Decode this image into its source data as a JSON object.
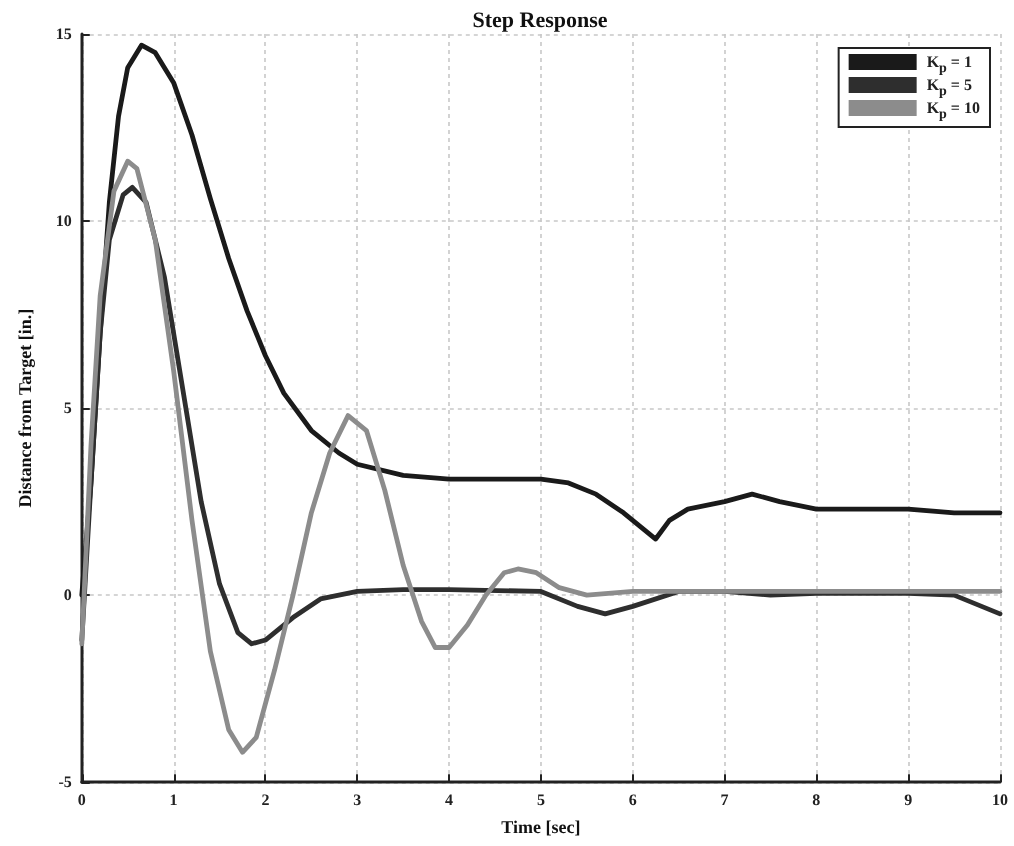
{
  "chart_data": {
    "type": "line",
    "title": "Step Response",
    "xlabel": "Time [sec]",
    "ylabel": "Distance from Target [in.]",
    "xlim": [
      0,
      10
    ],
    "xticks": [
      0,
      1,
      2,
      3,
      4,
      5,
      6,
      7,
      8,
      9,
      10
    ],
    "ylim": [
      -5,
      15
    ],
    "yticks": [
      -5,
      0,
      5,
      10,
      15
    ],
    "grid": true,
    "legend": "top right",
    "marker": "none",
    "line_style": "solid",
    "series": [
      {
        "name": "K$_{p}$ = 1",
        "color": "#1a1a1a",
        "x": [
          0,
          0.1,
          0.2,
          0.3,
          0.4,
          0.5,
          0.65,
          0.8,
          1,
          1.2,
          1.4,
          1.6,
          1.8,
          2,
          2.2,
          2.5,
          2.8,
          3,
          3.5,
          4,
          4.5,
          5,
          5.3,
          5.6,
          5.9,
          6.1,
          6.25,
          6.4,
          6.6,
          7,
          7.3,
          7.6,
          8,
          8.5,
          9,
          9.5,
          10
        ],
        "values": [
          0,
          3,
          7,
          10.5,
          12.8,
          14.1,
          14.7,
          14.5,
          13.7,
          12.3,
          10.6,
          9,
          7.6,
          6.4,
          5.4,
          4.4,
          3.8,
          3.5,
          3.2,
          3.1,
          3.1,
          3.1,
          3,
          2.7,
          2.2,
          1.8,
          1.5,
          2,
          2.3,
          2.5,
          2.7,
          2.5,
          2.3,
          2.3,
          2.3,
          2.2,
          2.2
        ]
      },
      {
        "name": "K$_{p}$ = 5",
        "color": "#2e2e2e",
        "x": [
          0,
          0.1,
          0.2,
          0.3,
          0.45,
          0.55,
          0.7,
          0.9,
          1.1,
          1.3,
          1.5,
          1.7,
          1.85,
          2,
          2.3,
          2.6,
          3,
          3.5,
          4,
          5,
          5.4,
          5.7,
          6,
          6.5,
          7,
          7.5,
          8,
          9,
          9.5,
          9.8,
          10
        ],
        "values": [
          -1.2,
          3,
          7,
          9.5,
          10.7,
          10.9,
          10.5,
          8.5,
          5.5,
          2.5,
          0.3,
          -1,
          -1.3,
          -1.2,
          -0.6,
          -0.1,
          0.1,
          0.15,
          0.15,
          0.1,
          -0.3,
          -0.5,
          -0.3,
          0.1,
          0.1,
          0,
          0.05,
          0.05,
          0,
          -0.3,
          -0.5
        ]
      },
      {
        "name": "K$_{p}$ = 10",
        "color": "#8c8c8c",
        "x": [
          0,
          0.1,
          0.2,
          0.35,
          0.5,
          0.6,
          0.8,
          1,
          1.2,
          1.4,
          1.6,
          1.75,
          1.9,
          2.1,
          2.3,
          2.5,
          2.7,
          2.9,
          3.1,
          3.3,
          3.5,
          3.7,
          3.85,
          4,
          4.2,
          4.4,
          4.6,
          4.75,
          4.95,
          5.2,
          5.5,
          6,
          7,
          8,
          9,
          10
        ],
        "values": [
          -1.3,
          4,
          8,
          10.8,
          11.6,
          11.4,
          9.5,
          6,
          2,
          -1.5,
          -3.6,
          -4.2,
          -3.8,
          -2,
          0,
          2.2,
          3.8,
          4.8,
          4.4,
          2.8,
          0.8,
          -0.7,
          -1.4,
          -1.4,
          -0.8,
          0,
          0.6,
          0.7,
          0.6,
          0.2,
          0,
          0.1,
          0.1,
          0.1,
          0.1,
          0.1
        ]
      }
    ]
  }
}
